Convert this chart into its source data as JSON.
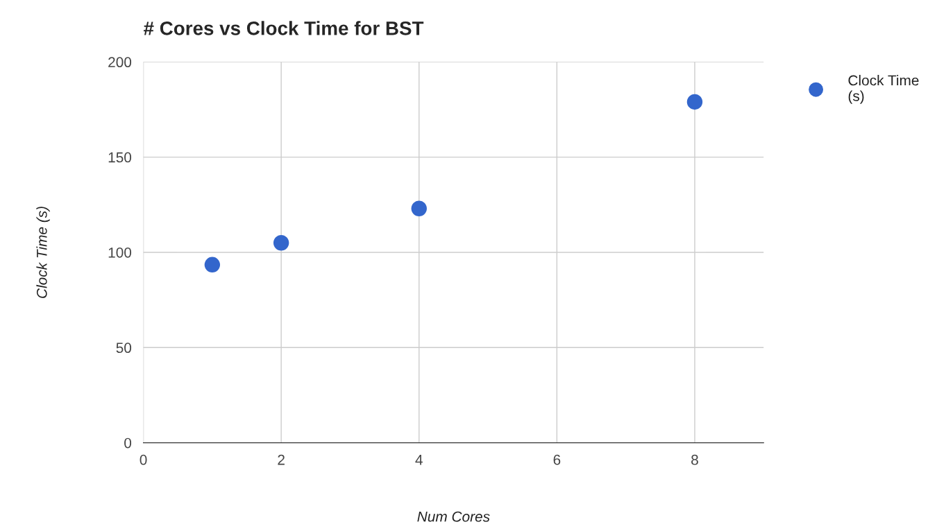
{
  "chart_data": {
    "type": "scatter",
    "title": "# Cores vs Clock Time for BST",
    "xlabel": "Num Cores",
    "ylabel": "Clock Time (s)",
    "x": [
      1,
      2,
      4,
      8
    ],
    "series": [
      {
        "name": "Clock Time (s)",
        "color": "#3366cc",
        "values": [
          93.5,
          105,
          123,
          179
        ]
      }
    ],
    "xlim": [
      0,
      9
    ],
    "xticks": [
      0,
      2,
      4,
      6,
      8
    ],
    "ylim": [
      0,
      200
    ],
    "yticks": [
      0,
      50,
      100,
      150,
      200
    ],
    "grid": true,
    "legend": "top right",
    "marker": "circle"
  }
}
